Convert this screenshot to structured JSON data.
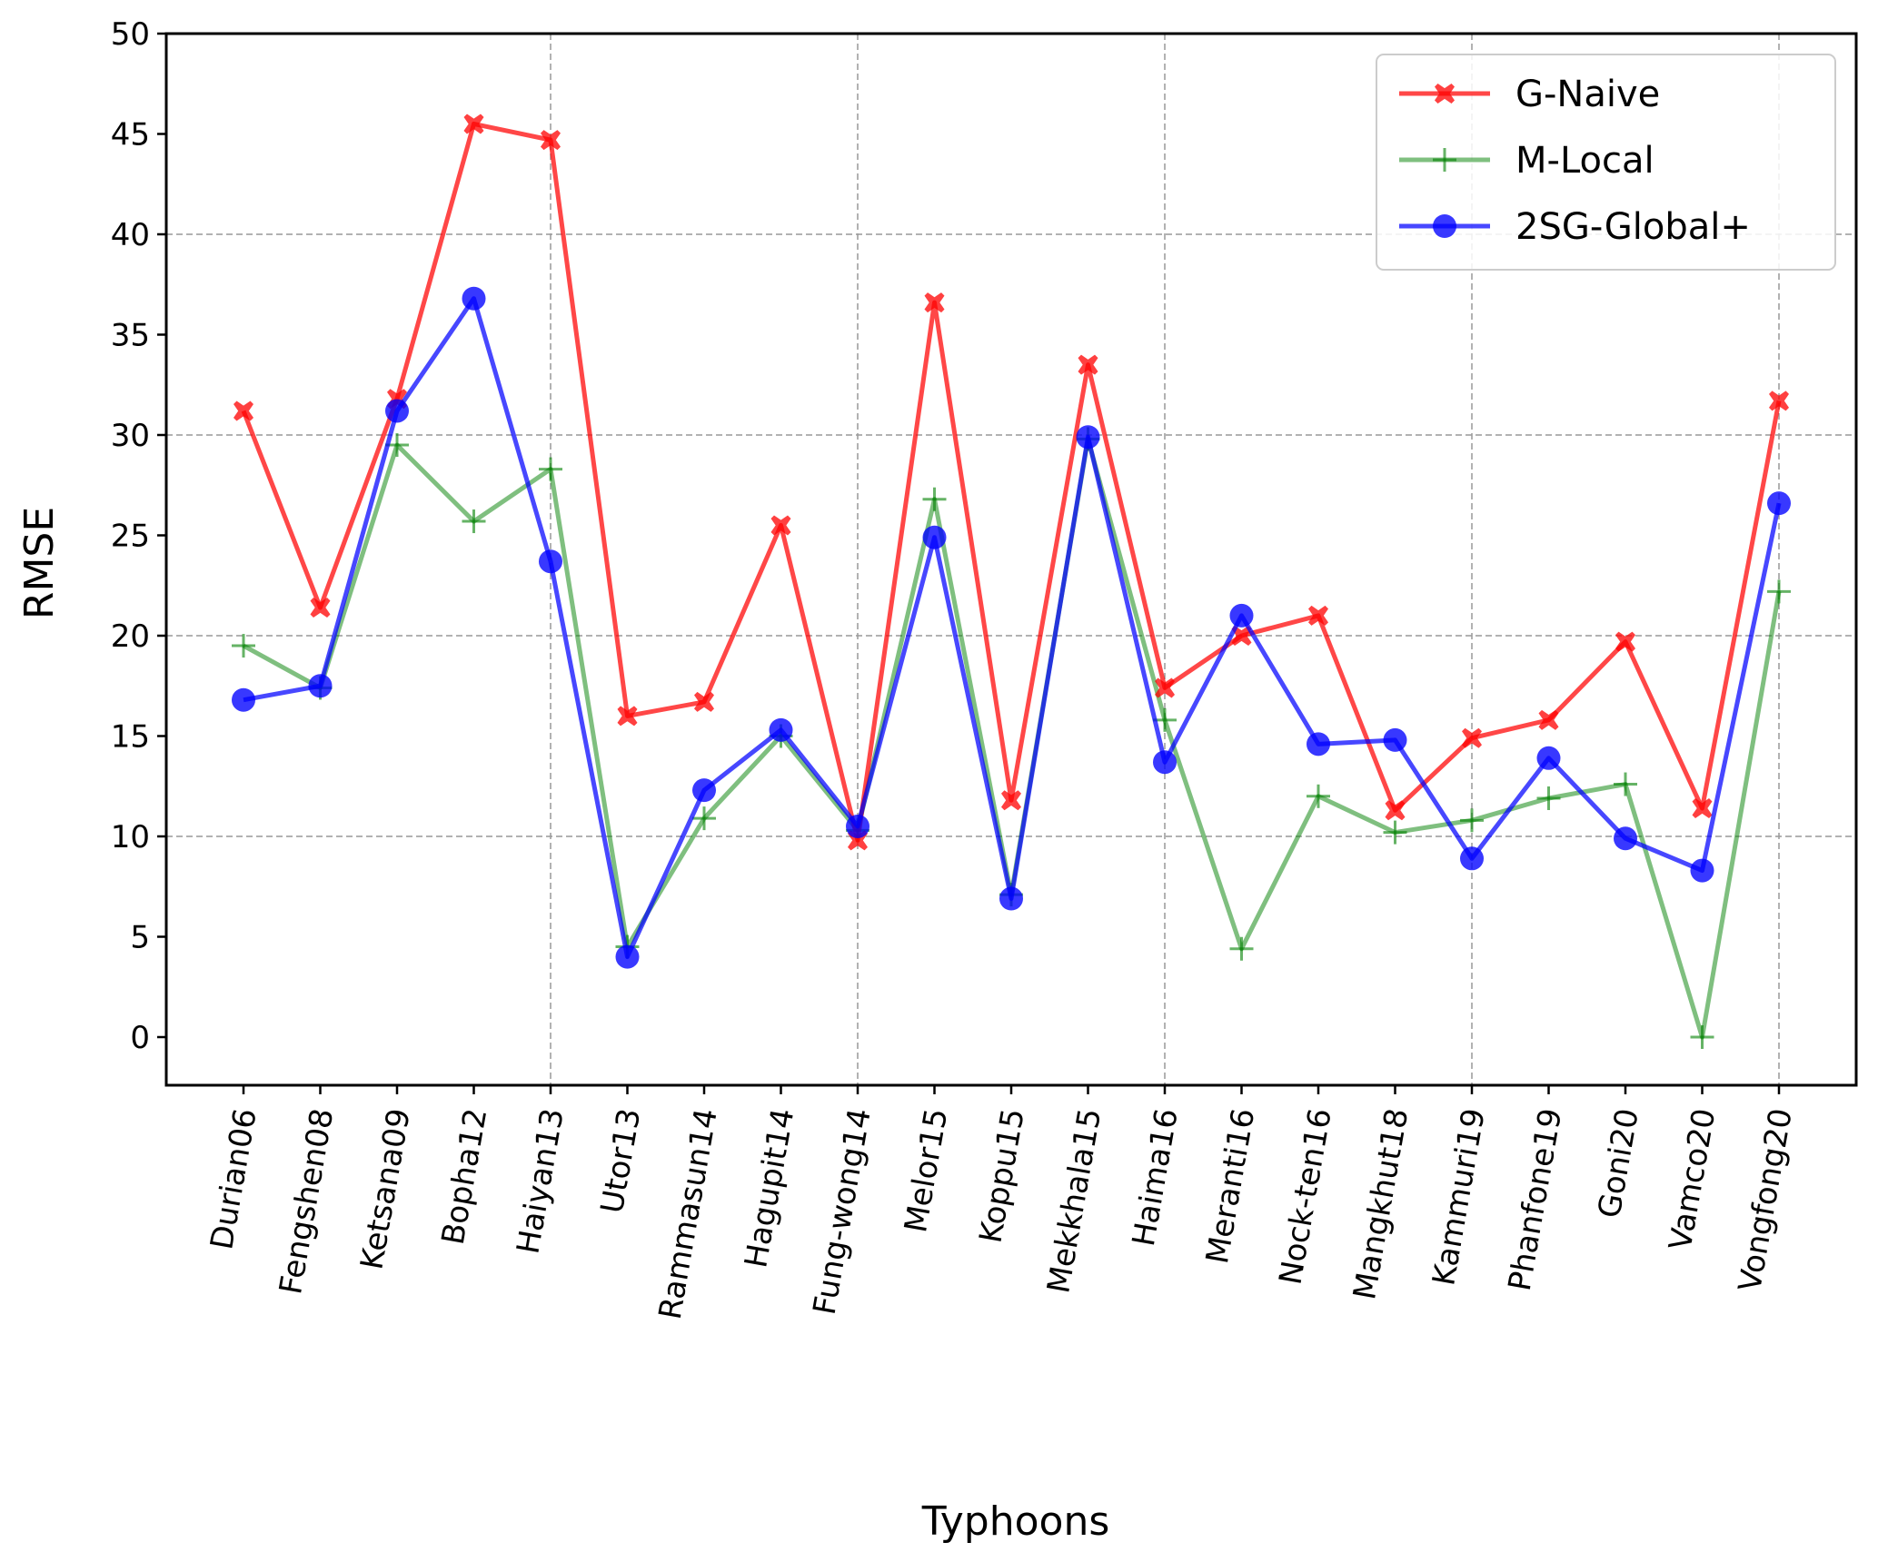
{
  "chart_data": {
    "type": "line",
    "title": "",
    "xlabel": "Typhoons",
    "ylabel": "RMSE",
    "ylim": [
      -2.2,
      50
    ],
    "yticks": [
      0,
      5,
      10,
      15,
      20,
      25,
      30,
      35,
      40,
      45,
      50
    ],
    "grid": {
      "y_major": [
        10,
        20,
        30,
        40
      ],
      "x_major": [
        "Haiyan13",
        "Fung-wong14",
        "Haima16",
        "Kammuri19",
        "Vongfong20"
      ],
      "style": "dashed"
    },
    "legend_position": "top-right",
    "categories": [
      "Durian06",
      "Fengshen08",
      "Ketsana09",
      "Bopha12",
      "Haiyan13",
      "Utor13",
      "Rammasun14",
      "Hagupit14",
      "Fung-wong14",
      "Melor15",
      "Koppu15",
      "Mekkhala15",
      "Haima16",
      "Meranti16",
      "Nock-ten16",
      "Mangkhut18",
      "Kammuri19",
      "Phanfone19",
      "Goni20",
      "Vamco20",
      "Vongfong20"
    ],
    "series": [
      {
        "name": "G-Naive",
        "color": "#ff0000",
        "marker": "X",
        "values": [
          31.2,
          21.4,
          31.8,
          45.5,
          44.7,
          16.0,
          16.7,
          25.5,
          9.8,
          36.6,
          11.8,
          33.5,
          17.4,
          20.0,
          21.0,
          11.3,
          14.9,
          15.8,
          19.7,
          11.4,
          31.7
        ]
      },
      {
        "name": "M-Local",
        "color": "#008000",
        "marker": "+",
        "values": [
          19.5,
          17.4,
          29.5,
          25.7,
          28.3,
          4.5,
          10.9,
          15.0,
          10.3,
          26.8,
          7.1,
          29.8,
          15.8,
          4.4,
          12.0,
          10.2,
          10.8,
          11.9,
          12.6,
          0.0,
          22.2
        ]
      },
      {
        "name": "2SG-Global+",
        "color": "#0000ff",
        "marker": "o",
        "values": [
          16.8,
          17.5,
          31.2,
          36.8,
          23.7,
          4.0,
          12.3,
          15.3,
          10.5,
          24.9,
          6.9,
          29.9,
          13.7,
          21.0,
          14.6,
          14.8,
          8.9,
          13.9,
          9.9,
          8.3,
          26.6
        ]
      }
    ]
  }
}
